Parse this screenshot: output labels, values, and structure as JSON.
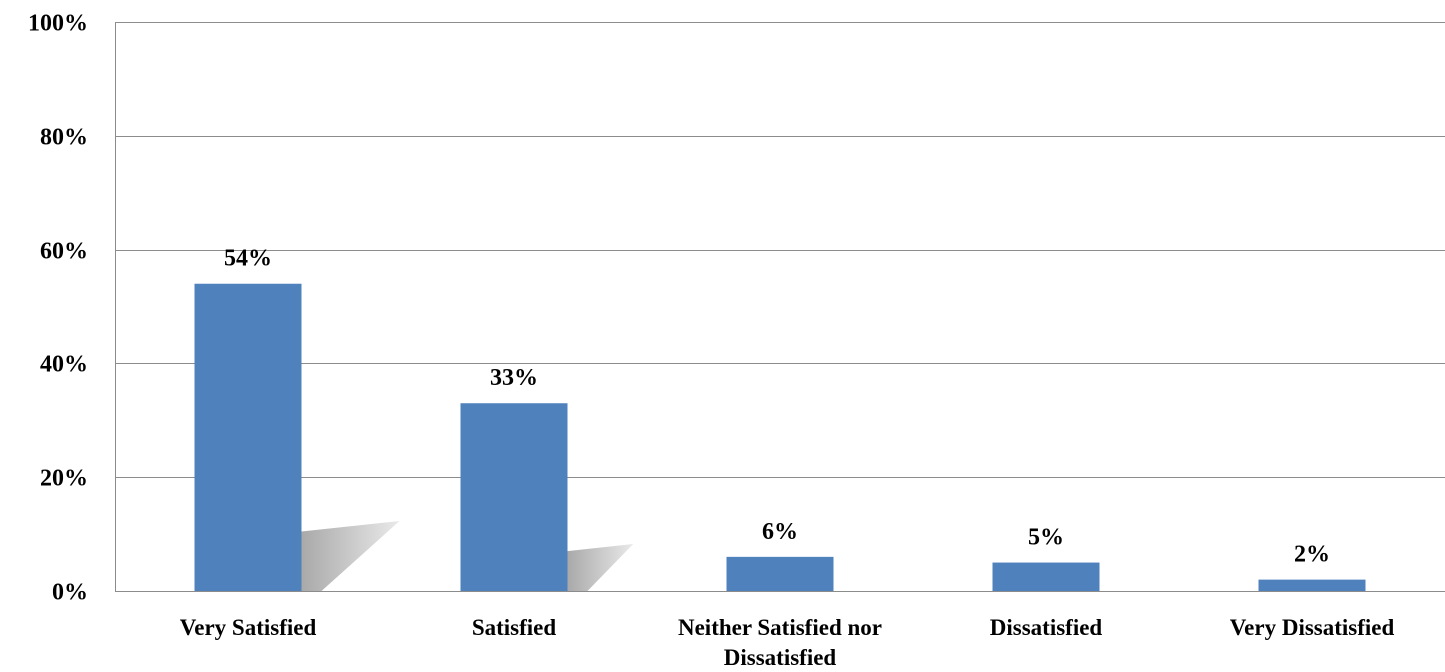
{
  "chart_data": {
    "type": "bar",
    "categories": [
      "Very Satisfied",
      "Satisfied",
      "Neither Satisfied nor Dissatisfied",
      "Dissatisfied",
      "Very Dissatisfied"
    ],
    "category_lines": [
      [
        "Very Satisfied"
      ],
      [
        "Satisfied"
      ],
      [
        "Neither Satisfied nor",
        "Dissatisfied"
      ],
      [
        "Dissatisfied"
      ],
      [
        "Very Dissatisfied"
      ]
    ],
    "values": [
      54,
      33,
      6,
      5,
      2
    ],
    "data_labels": [
      "54%",
      "33%",
      "6%",
      "5%",
      "2%"
    ],
    "y_ticks": [
      0,
      20,
      40,
      60,
      80,
      100
    ],
    "y_tick_labels": [
      "0%",
      "20%",
      "40%",
      "60%",
      "80%",
      "100%"
    ],
    "ylim": [
      0,
      100
    ],
    "grid": true,
    "bar_color": "#4f81bd",
    "title": "",
    "xlabel": "",
    "ylabel": ""
  }
}
